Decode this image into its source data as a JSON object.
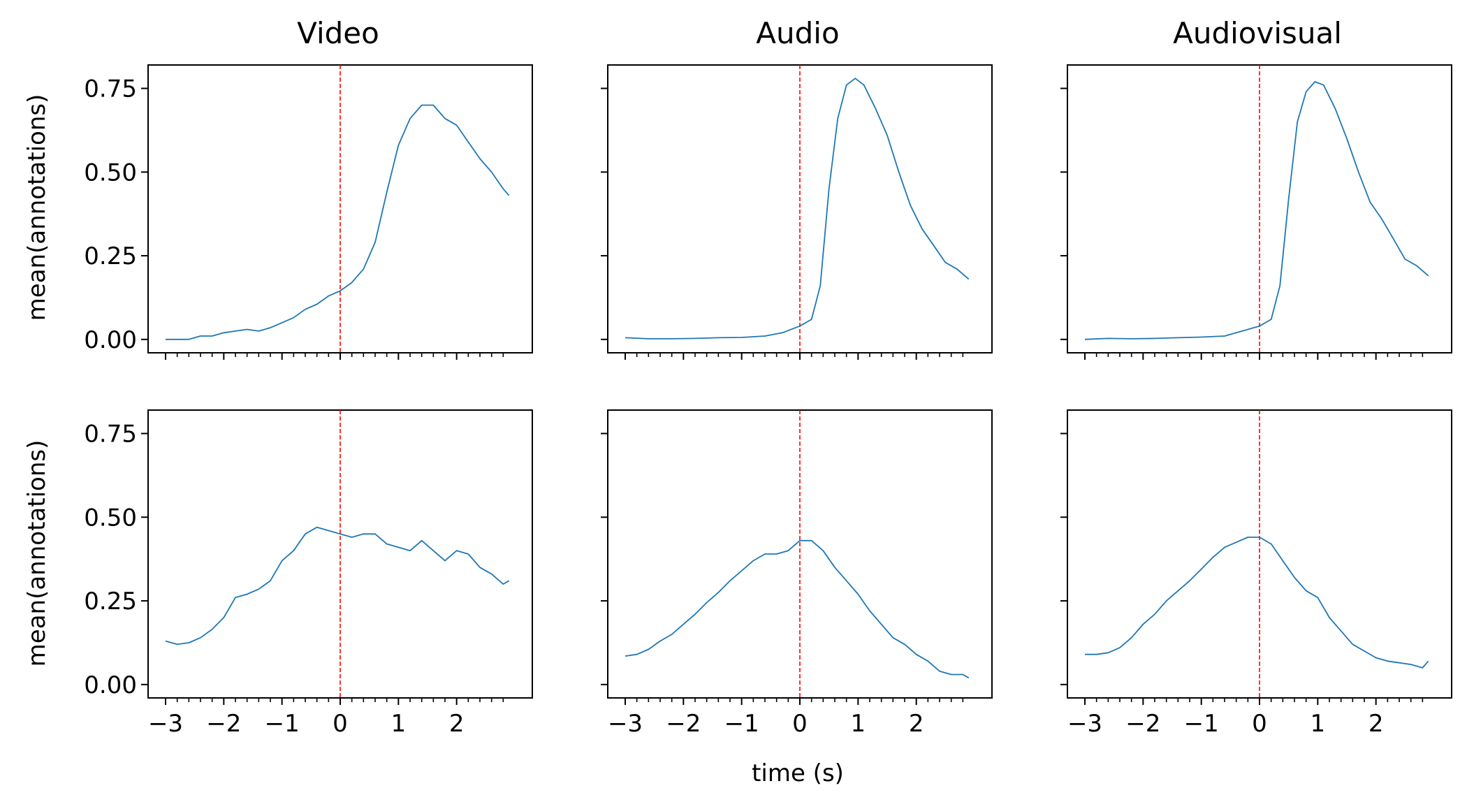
{
  "chart_data": {
    "type": "line",
    "layout": "grid 2 rows x 3 columns, shared axes",
    "column_titles": [
      "Video",
      "Audio",
      "Audiovisual"
    ],
    "ylabel": "mean(annotations)",
    "xlabel": "time (s)",
    "x_ticks": [
      -3,
      -2,
      -1,
      0,
      1,
      2
    ],
    "x_tick_labels": [
      "−3",
      "−2",
      "−1",
      "0",
      "1",
      "2"
    ],
    "y_ticks": [
      0.0,
      0.25,
      0.5,
      0.75
    ],
    "y_tick_labels": [
      "0.00",
      "0.25",
      "0.50",
      "0.75"
    ],
    "xlim": [
      -3.3,
      3.3
    ],
    "ylim": [
      -0.04,
      0.82
    ],
    "grid": false,
    "line_color": "#1f77b4",
    "marker_line": {
      "x": 0,
      "color": "#ff0000",
      "style": "dashed"
    },
    "panels": [
      {
        "row": 0,
        "col": 0,
        "title": "Video",
        "x": [
          -3.0,
          -2.8,
          -2.6,
          -2.4,
          -2.2,
          -2.0,
          -1.8,
          -1.6,
          -1.4,
          -1.2,
          -1.0,
          -0.8,
          -0.6,
          -0.4,
          -0.2,
          0.0,
          0.2,
          0.4,
          0.6,
          0.8,
          1.0,
          1.2,
          1.4,
          1.6,
          1.8,
          2.0,
          2.2,
          2.4,
          2.6,
          2.8,
          2.9
        ],
        "y": [
          0.0,
          0.0,
          0.0,
          0.01,
          0.01,
          0.02,
          0.025,
          0.03,
          0.025,
          0.035,
          0.05,
          0.065,
          0.09,
          0.105,
          0.13,
          0.145,
          0.17,
          0.21,
          0.29,
          0.44,
          0.58,
          0.66,
          0.7,
          0.7,
          0.66,
          0.64,
          0.59,
          0.54,
          0.5,
          0.45,
          0.43
        ]
      },
      {
        "row": 0,
        "col": 1,
        "title": "Audio",
        "x": [
          -3.0,
          -2.6,
          -2.2,
          -1.8,
          -1.4,
          -1.0,
          -0.6,
          -0.3,
          0.0,
          0.2,
          0.35,
          0.5,
          0.65,
          0.8,
          0.95,
          1.1,
          1.3,
          1.5,
          1.7,
          1.9,
          2.1,
          2.3,
          2.5,
          2.7,
          2.9
        ],
        "y": [
          0.005,
          0.002,
          0.002,
          0.003,
          0.005,
          0.006,
          0.01,
          0.02,
          0.04,
          0.06,
          0.16,
          0.45,
          0.66,
          0.76,
          0.78,
          0.76,
          0.69,
          0.61,
          0.5,
          0.4,
          0.33,
          0.28,
          0.23,
          0.21,
          0.18
        ]
      },
      {
        "row": 0,
        "col": 2,
        "title": "Audiovisual",
        "x": [
          -3.0,
          -2.6,
          -2.2,
          -1.8,
          -1.4,
          -1.0,
          -0.6,
          -0.3,
          0.0,
          0.2,
          0.35,
          0.5,
          0.65,
          0.8,
          0.95,
          1.1,
          1.3,
          1.5,
          1.7,
          1.9,
          2.1,
          2.3,
          2.5,
          2.7,
          2.9
        ],
        "y": [
          0.0,
          0.003,
          0.002,
          0.003,
          0.005,
          0.007,
          0.01,
          0.025,
          0.04,
          0.06,
          0.16,
          0.42,
          0.65,
          0.74,
          0.77,
          0.76,
          0.69,
          0.6,
          0.5,
          0.41,
          0.36,
          0.3,
          0.24,
          0.22,
          0.19
        ]
      },
      {
        "row": 1,
        "col": 0,
        "title": "",
        "x": [
          -3.0,
          -2.8,
          -2.6,
          -2.4,
          -2.2,
          -2.0,
          -1.8,
          -1.6,
          -1.4,
          -1.2,
          -1.0,
          -0.8,
          -0.6,
          -0.4,
          -0.2,
          0.0,
          0.2,
          0.4,
          0.6,
          0.8,
          1.0,
          1.2,
          1.4,
          1.6,
          1.8,
          2.0,
          2.2,
          2.4,
          2.6,
          2.8,
          2.9
        ],
        "y": [
          0.13,
          0.12,
          0.125,
          0.14,
          0.165,
          0.2,
          0.26,
          0.27,
          0.285,
          0.31,
          0.37,
          0.4,
          0.45,
          0.47,
          0.46,
          0.45,
          0.44,
          0.45,
          0.45,
          0.42,
          0.41,
          0.4,
          0.43,
          0.4,
          0.37,
          0.4,
          0.39,
          0.35,
          0.33,
          0.3,
          0.31
        ]
      },
      {
        "row": 1,
        "col": 1,
        "title": "",
        "x": [
          -3.0,
          -2.8,
          -2.6,
          -2.4,
          -2.2,
          -2.0,
          -1.8,
          -1.6,
          -1.4,
          -1.2,
          -1.0,
          -0.8,
          -0.6,
          -0.4,
          -0.2,
          0.0,
          0.2,
          0.4,
          0.6,
          0.8,
          1.0,
          1.2,
          1.4,
          1.6,
          1.8,
          2.0,
          2.2,
          2.4,
          2.6,
          2.8,
          2.9
        ],
        "y": [
          0.085,
          0.09,
          0.105,
          0.13,
          0.15,
          0.18,
          0.21,
          0.245,
          0.275,
          0.31,
          0.34,
          0.37,
          0.39,
          0.39,
          0.4,
          0.43,
          0.43,
          0.4,
          0.35,
          0.31,
          0.27,
          0.22,
          0.18,
          0.14,
          0.12,
          0.09,
          0.07,
          0.04,
          0.03,
          0.03,
          0.02
        ]
      },
      {
        "row": 1,
        "col": 2,
        "title": "",
        "x": [
          -3.0,
          -2.8,
          -2.6,
          -2.4,
          -2.2,
          -2.0,
          -1.8,
          -1.6,
          -1.4,
          -1.2,
          -1.0,
          -0.8,
          -0.6,
          -0.4,
          -0.2,
          0.0,
          0.2,
          0.4,
          0.6,
          0.8,
          1.0,
          1.2,
          1.4,
          1.6,
          1.8,
          2.0,
          2.2,
          2.4,
          2.6,
          2.8,
          2.9
        ],
        "y": [
          0.09,
          0.09,
          0.095,
          0.11,
          0.14,
          0.18,
          0.21,
          0.25,
          0.28,
          0.31,
          0.345,
          0.38,
          0.41,
          0.425,
          0.44,
          0.44,
          0.42,
          0.37,
          0.32,
          0.28,
          0.26,
          0.2,
          0.16,
          0.12,
          0.1,
          0.08,
          0.07,
          0.065,
          0.06,
          0.05,
          0.07
        ]
      }
    ]
  }
}
